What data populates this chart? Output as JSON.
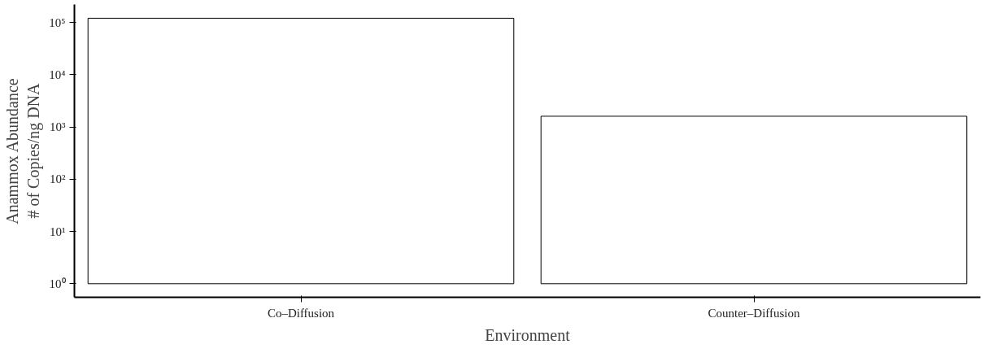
{
  "chart_data": {
    "type": "bar",
    "xlabel": "Environment",
    "ylabel": "Anammox Abundance\n# of Copies/ng DNA",
    "categories": [
      "Co–Diffusion",
      "Counter–Diffusion"
    ],
    "values": [
      119999,
      1599
    ],
    "base": [
      1,
      1
    ],
    "color": "#ffffff",
    "log": "y",
    "ylim": [
      0.55,
      220000
    ],
    "yticks": [
      {
        "value": 1,
        "label": "10⁰"
      },
      {
        "value": 10,
        "label": "10¹"
      },
      {
        "value": 100,
        "label": "10²"
      },
      {
        "value": 1000,
        "label": "10³"
      },
      {
        "value": 10000,
        "label": "10⁴"
      },
      {
        "value": 100000,
        "label": "10⁵"
      }
    ],
    "grid": false
  }
}
